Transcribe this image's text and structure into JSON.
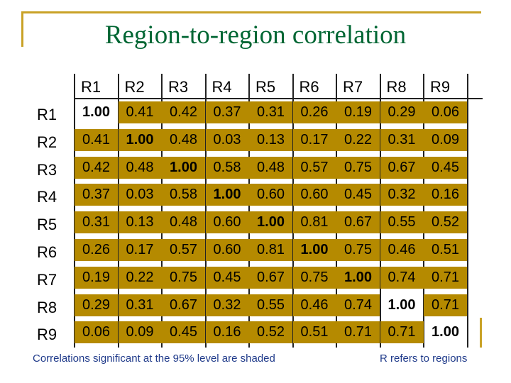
{
  "title": "Region-to-region correlation",
  "columns": [
    "R1",
    "R2",
    "R3",
    "R4",
    "R5",
    "R6",
    "R7",
    "R8",
    "R9"
  ],
  "rows": [
    {
      "label": "R1",
      "values": [
        "1.00",
        "0.41",
        "0.42",
        "0.37",
        "0.31",
        "0.26",
        "0.19",
        "0.29",
        "0.06"
      ],
      "shaded": [
        false,
        true,
        true,
        true,
        true,
        true,
        true,
        true,
        true
      ]
    },
    {
      "label": "R2",
      "values": [
        "0.41",
        "1.00",
        "0.48",
        "0.03",
        "0.13",
        "0.17",
        "0.22",
        "0.31",
        "0.09"
      ],
      "shaded": [
        true,
        true,
        true,
        true,
        true,
        true,
        true,
        true,
        true
      ]
    },
    {
      "label": "R3",
      "values": [
        "0.42",
        "0.48",
        "1.00",
        "0.58",
        "0.48",
        "0.57",
        "0.75",
        "0.67",
        "0.45"
      ],
      "shaded": [
        true,
        true,
        true,
        true,
        true,
        true,
        true,
        true,
        true
      ]
    },
    {
      "label": "R4",
      "values": [
        "0.37",
        "0.03",
        "0.58",
        "1.00",
        "0.60",
        "0.60",
        "0.45",
        "0.32",
        "0.16"
      ],
      "shaded": [
        true,
        true,
        true,
        true,
        true,
        true,
        true,
        true,
        true
      ]
    },
    {
      "label": "R5",
      "values": [
        "0.31",
        "0.13",
        "0.48",
        "0.60",
        "1.00",
        "0.81",
        "0.67",
        "0.55",
        "0.52"
      ],
      "shaded": [
        true,
        true,
        true,
        true,
        true,
        true,
        true,
        true,
        true
      ]
    },
    {
      "label": "R6",
      "values": [
        "0.26",
        "0.17",
        "0.57",
        "0.60",
        "0.81",
        "1.00",
        "0.75",
        "0.46",
        "0.51"
      ],
      "shaded": [
        true,
        true,
        true,
        true,
        true,
        true,
        true,
        true,
        true
      ]
    },
    {
      "label": "R7",
      "values": [
        "0.19",
        "0.22",
        "0.75",
        "0.45",
        "0.67",
        "0.75",
        "1.00",
        "0.74",
        "0.71"
      ],
      "shaded": [
        true,
        true,
        true,
        true,
        true,
        true,
        true,
        true,
        true
      ]
    },
    {
      "label": "R8",
      "values": [
        "0.29",
        "0.31",
        "0.67",
        "0.32",
        "0.55",
        "0.46",
        "0.74",
        "1.00",
        "0.71"
      ],
      "shaded": [
        true,
        true,
        true,
        true,
        true,
        true,
        true,
        false,
        true
      ]
    },
    {
      "label": "R9",
      "values": [
        "0.06",
        "0.09",
        "0.45",
        "0.16",
        "0.52",
        "0.51",
        "0.71",
        "0.71",
        "1.00"
      ],
      "shaded": [
        true,
        true,
        true,
        true,
        true,
        true,
        true,
        true,
        false
      ]
    }
  ],
  "footnote_left": "Correlations significant at the 95% level are shaded",
  "footnote_right": "R refers to regions",
  "colors": {
    "shade": "#b58a00",
    "title": "#006633",
    "footnote": "#1f3a8a",
    "accent": "#c9a227"
  }
}
